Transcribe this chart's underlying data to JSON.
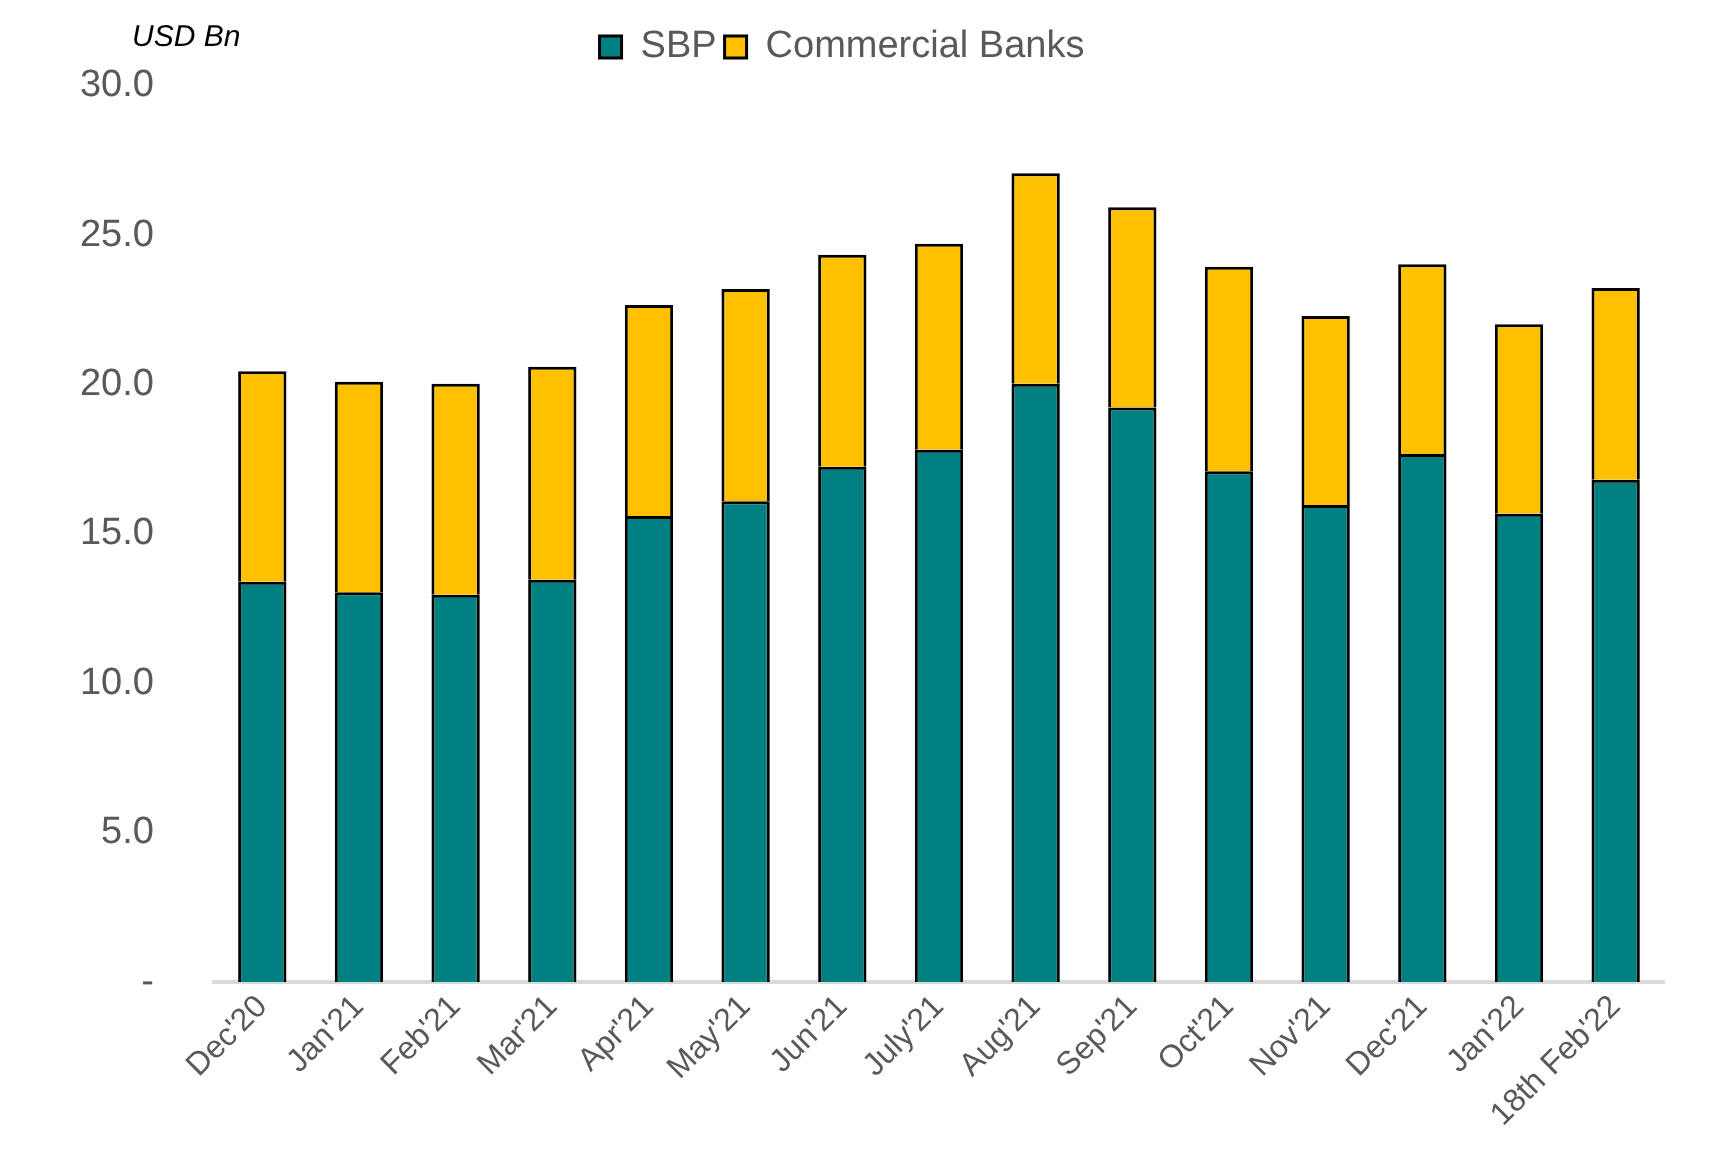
{
  "chart_data": {
    "type": "bar",
    "stacked": true,
    "ylabel": "USD Bn",
    "legend": "top",
    "categories": [
      "Dec'20",
      "Jan'21",
      "Feb'21",
      "Mar'21",
      "Apr'21",
      "May'21",
      "Jun'21",
      "July'21",
      "Aug'21",
      "Sep'21",
      "Oct'21",
      "Nov'21",
      "Dec'21",
      "Jan'22",
      "18th Feb'22"
    ],
    "series": [
      {
        "name": "SBP",
        "color": "#008080",
        "values": [
          13.4,
          13.05,
          12.97,
          13.47,
          15.6,
          16.1,
          17.25,
          17.82,
          20.03,
          19.24,
          17.1,
          15.97,
          17.68,
          15.68,
          16.82
        ]
      },
      {
        "name": "Commercial Banks",
        "color": "#ffc000",
        "values": [
          7.05,
          7.05,
          7.06,
          7.13,
          7.07,
          7.1,
          7.1,
          6.9,
          7.05,
          6.7,
          6.85,
          6.33,
          6.35,
          6.34,
          6.42
        ]
      }
    ],
    "ylim": [
      0,
      30
    ],
    "yticks": [
      {
        "value": 0,
        "label": "-"
      },
      {
        "value": 5,
        "label": "5.0"
      },
      {
        "value": 10,
        "label": "10.0"
      },
      {
        "value": 15,
        "label": "15.0"
      },
      {
        "value": 20,
        "label": "20.0"
      },
      {
        "value": 25,
        "label": "25.0"
      },
      {
        "value": 30,
        "label": "30.0"
      }
    ],
    "grid": false
  }
}
